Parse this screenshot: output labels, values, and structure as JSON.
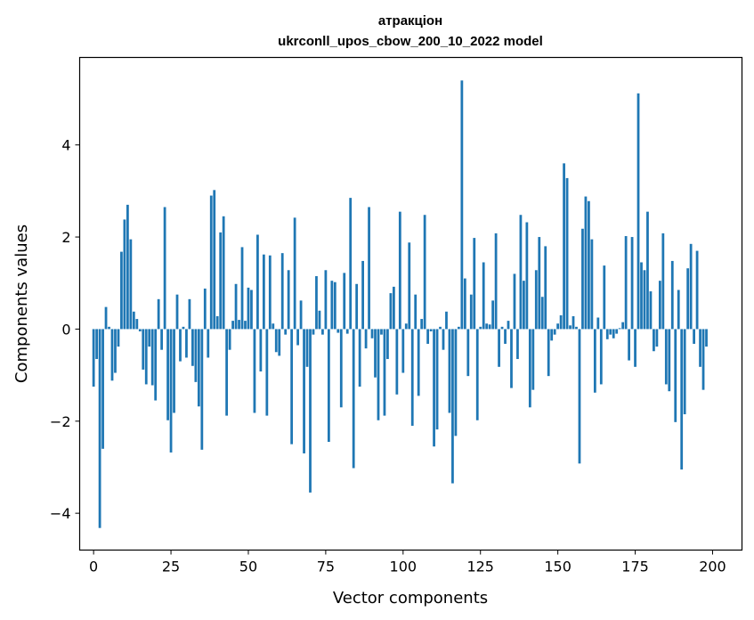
{
  "chart_data": {
    "type": "bar",
    "title_line1": "атракціон",
    "title_line2": "ukrconll_upos_cbow_200_10_2022 model",
    "xlabel": "Vector components",
    "ylabel": "Components values",
    "xlim": [
      -4.5,
      209.5
    ],
    "ylim": [
      -4.8,
      5.9
    ],
    "xticks": [
      0,
      25,
      50,
      75,
      100,
      125,
      150,
      175,
      200
    ],
    "yticks": [
      -4,
      -2,
      0,
      2,
      4
    ],
    "ytick_labels": [
      "−4",
      "−2",
      "0",
      "2",
      "4"
    ],
    "bar_color": "#1f77b4",
    "values": [
      -1.25,
      -0.65,
      -4.32,
      -2.6,
      0.48,
      0.05,
      -1.12,
      -0.95,
      -0.38,
      1.68,
      2.38,
      2.7,
      1.95,
      0.38,
      0.22,
      -0.05,
      -0.88,
      -1.2,
      -0.38,
      -1.22,
      -1.55,
      0.65,
      -0.45,
      2.65,
      -1.98,
      -2.68,
      -1.82,
      0.75,
      -0.7,
      0.05,
      -0.62,
      0.65,
      -0.8,
      -1.15,
      -1.68,
      -2.62,
      0.88,
      -0.62,
      2.9,
      3.02,
      0.28,
      2.1,
      2.45,
      -1.88,
      -0.45,
      0.18,
      0.98,
      0.2,
      1.78,
      0.18,
      0.9,
      0.85,
      -1.82,
      2.05,
      -0.92,
      1.62,
      -1.88,
      1.6,
      0.12,
      -0.5,
      -0.58,
      1.65,
      -0.12,
      1.28,
      -2.5,
      2.42,
      -0.35,
      0.62,
      -2.7,
      -0.82,
      -3.55,
      -0.12,
      1.15,
      0.4,
      -0.12,
      1.28,
      -2.45,
      1.05,
      1.02,
      -0.08,
      -1.7,
      1.22,
      -0.1,
      2.85,
      -3.02,
      0.98,
      -1.25,
      1.48,
      -0.42,
      2.65,
      -0.2,
      -1.05,
      -1.98,
      -0.12,
      -1.88,
      -0.65,
      0.78,
      0.92,
      -1.42,
      2.55,
      -0.95,
      0.12,
      1.88,
      -2.1,
      0.75,
      -1.45,
      0.22,
      2.48,
      -0.32,
      -0.05,
      -2.55,
      -2.18,
      0.05,
      -0.45,
      0.38,
      -1.82,
      -3.35,
      -2.32,
      0.05,
      5.4,
      1.1,
      -1.02,
      0.75,
      1.98,
      -1.98,
      0.05,
      1.45,
      0.12,
      0.1,
      0.62,
      2.08,
      -0.82,
      0.05,
      -0.32,
      0.18,
      -1.28,
      1.2,
      -0.65,
      2.48,
      1.05,
      2.32,
      -1.7,
      -1.32,
      1.28,
      2.0,
      0.7,
      1.8,
      -1.02,
      -0.25,
      -0.12,
      0.12,
      0.3,
      3.6,
      3.28,
      0.08,
      0.28,
      0.05,
      -2.92,
      2.18,
      2.88,
      2.78,
      1.95,
      -1.38,
      0.25,
      -1.2,
      1.38,
      -0.22,
      -0.12,
      -0.2,
      -0.1,
      0.02,
      0.15,
      2.02,
      -0.68,
      2.0,
      -0.82,
      5.12,
      1.45,
      1.28,
      2.55,
      0.82,
      -0.48,
      -0.38,
      1.05,
      2.08,
      -1.2,
      -1.35,
      1.48,
      -2.02,
      0.85,
      -3.05,
      -1.85,
      1.32,
      1.85,
      -0.32,
      1.7,
      -0.82,
      -1.32,
      -0.38
    ]
  }
}
